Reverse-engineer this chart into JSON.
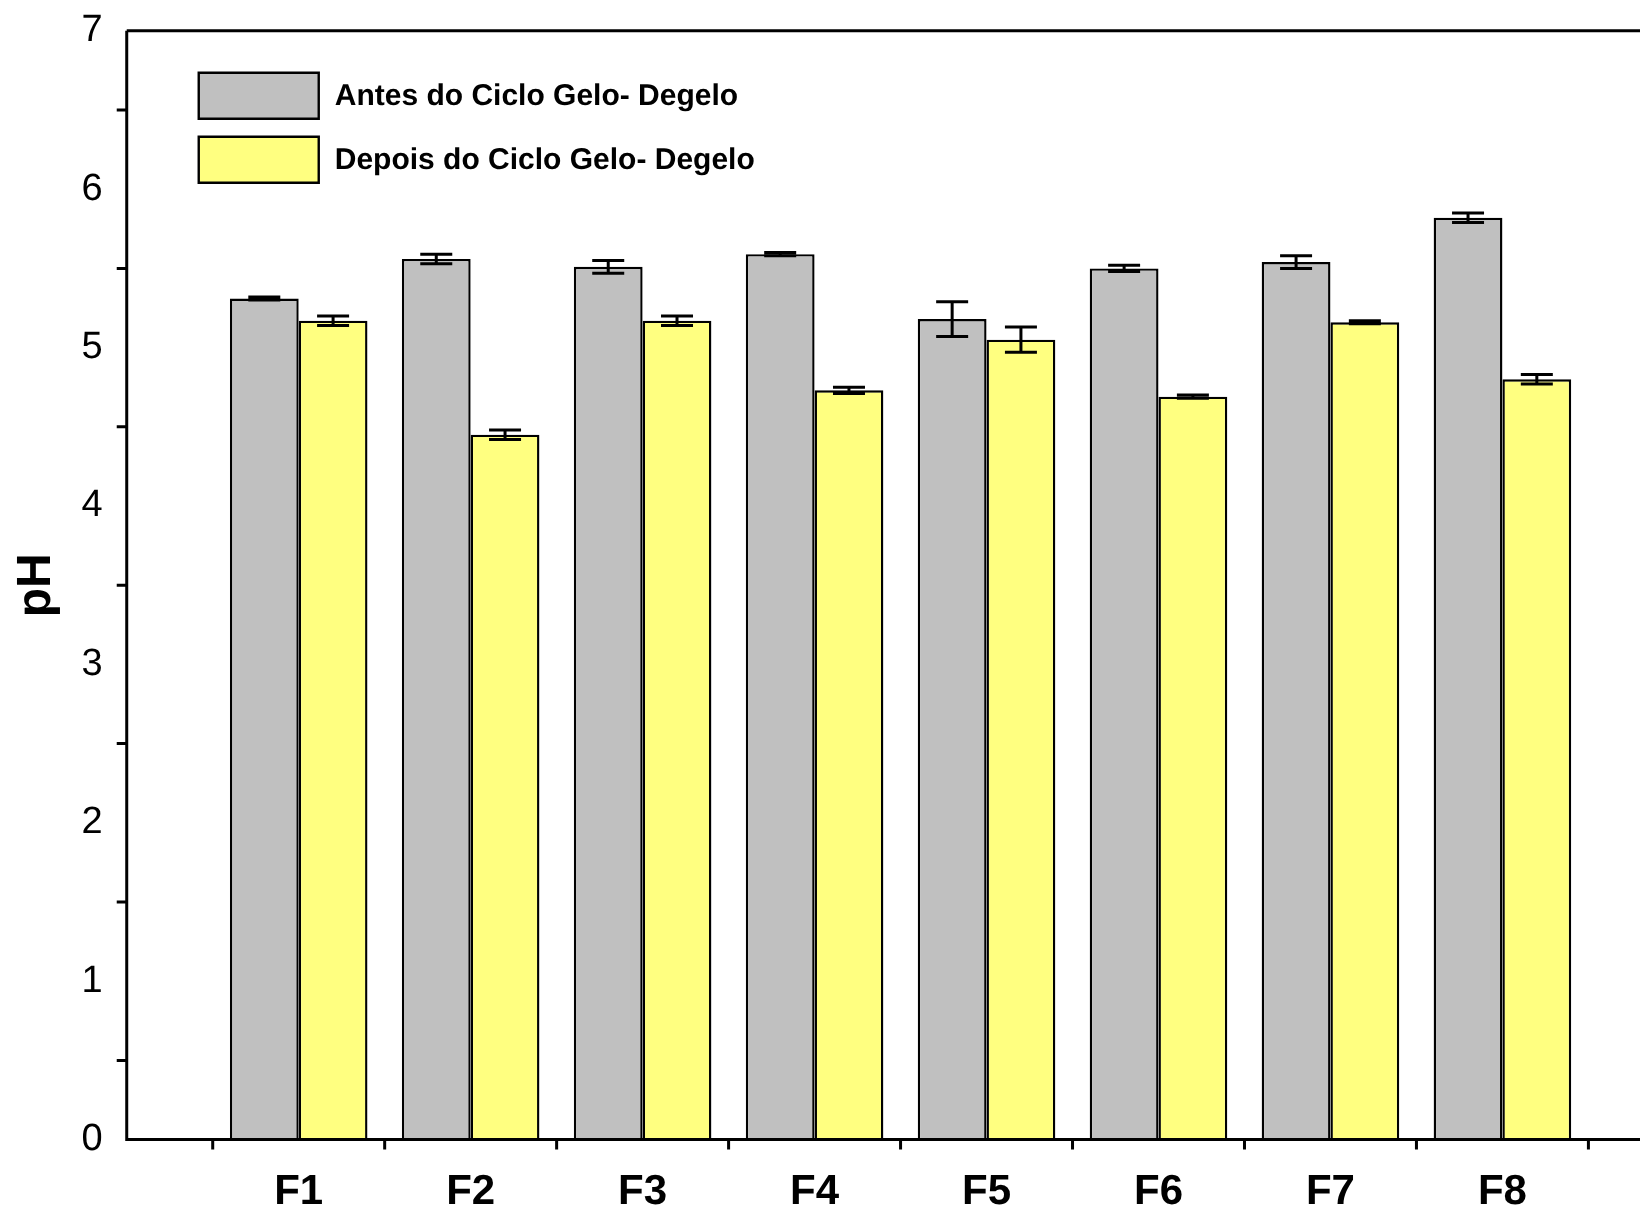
{
  "chart_data": {
    "type": "bar",
    "ylabel": "pH",
    "categories": [
      "F1",
      "F2",
      "F3",
      "F4",
      "F5",
      "F6",
      "F7",
      "F8"
    ],
    "series": [
      {
        "name": "Antes do Ciclo Gelo- Degelo",
        "color": "#c0c0c0",
        "values": [
          5.31,
          5.56,
          5.51,
          5.59,
          5.18,
          5.5,
          5.54,
          5.82
        ],
        "errors": [
          0.01,
          0.03,
          0.04,
          0.01,
          0.11,
          0.02,
          0.04,
          0.03
        ]
      },
      {
        "name": "Depois do Ciclo Gelo- Degelo",
        "color": "#ffff80",
        "values": [
          5.17,
          4.45,
          5.17,
          4.73,
          5.05,
          4.69,
          5.16,
          4.8
        ],
        "errors": [
          0.03,
          0.03,
          0.03,
          0.02,
          0.08,
          0.01,
          0.01,
          0.03
        ]
      }
    ],
    "ylim": [
      0,
      7
    ],
    "yticks": [
      0,
      1,
      2,
      3,
      4,
      5,
      6,
      7
    ],
    "grid": false,
    "legend": "top left"
  }
}
